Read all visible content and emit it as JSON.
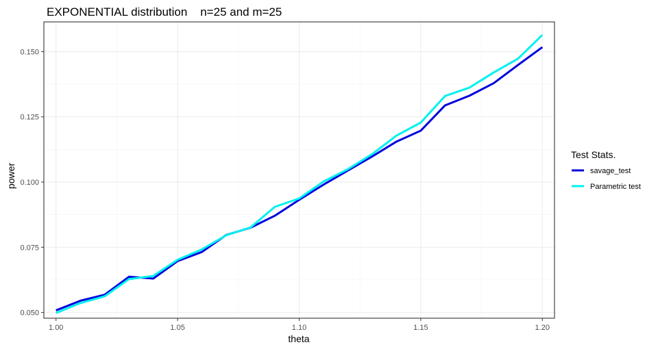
{
  "chart_data": {
    "type": "line",
    "title": "EXPONENTIAL distribution    n=25 and m=25",
    "xlabel": "theta",
    "ylabel": "power",
    "xlim": [
      0.995,
      1.205
    ],
    "ylim": [
      0.0478,
      0.1614
    ],
    "x_ticks": [
      1.0,
      1.05,
      1.1,
      1.15,
      1.2
    ],
    "x_tick_labels": [
      "1.00",
      "1.05",
      "1.10",
      "1.15",
      "1.20"
    ],
    "y_ticks": [
      0.05,
      0.075,
      0.1,
      0.125,
      0.15
    ],
    "y_tick_labels": [
      "0.050",
      "0.075",
      "0.100",
      "0.125",
      "0.150"
    ],
    "grid": true,
    "legend": {
      "title": "Test Stats.",
      "position": "right"
    },
    "x": [
      1.0,
      1.01,
      1.02,
      1.03,
      1.04,
      1.05,
      1.06,
      1.07,
      1.08,
      1.09,
      1.1,
      1.11,
      1.12,
      1.13,
      1.14,
      1.15,
      1.16,
      1.17,
      1.18,
      1.19,
      1.2
    ],
    "series": [
      {
        "name": "savage_test",
        "color": "#0000dd",
        "values": [
          0.0508,
          0.0545,
          0.0568,
          0.0637,
          0.063,
          0.0697,
          0.0732,
          0.0797,
          0.0825,
          0.0871,
          0.0932,
          0.099,
          0.1044,
          0.1098,
          0.1155,
          0.1197,
          0.1294,
          0.1331,
          0.1379,
          0.1449,
          0.1517
        ]
      },
      {
        "name": "Parametric test",
        "color": "#00f0f0",
        "values": [
          0.0498,
          0.0536,
          0.0562,
          0.0628,
          0.064,
          0.0702,
          0.0742,
          0.0796,
          0.0826,
          0.0905,
          0.0937,
          0.1002,
          0.1049,
          0.1107,
          0.1178,
          0.1228,
          0.133,
          0.1362,
          0.142,
          0.1473,
          0.1564
        ]
      }
    ]
  }
}
